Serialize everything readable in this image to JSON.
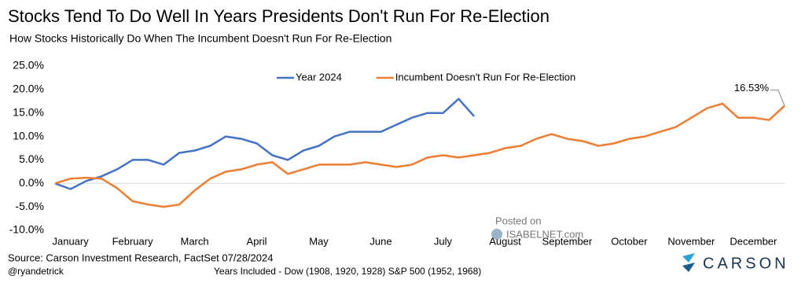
{
  "chart_data": {
    "type": "line",
    "title": "Stocks Tend To Do Well In Years Presidents Don't Run For Re-Election",
    "subtitle": "How Stocks Historically Do When The Incumbent Doesn't Run For Re-Election",
    "source": "Source: Carson Investment Research, FactSet 07/28/2024",
    "credit": "@ryandetrick",
    "note": "Years Included  - Dow (1908, 1920, 1928) S&P 500 (1952, 1968)",
    "watermark": [
      "Posted on",
      "ISABELNET.com"
    ],
    "logo": "CARSON",
    "categories": [
      "January",
      null,
      null,
      null,
      "February",
      null,
      null,
      null,
      "March",
      null,
      null,
      null,
      "April",
      null,
      null,
      null,
      "May",
      null,
      null,
      null,
      "June",
      null,
      null,
      null,
      "July",
      null,
      null,
      null,
      "August",
      null,
      null,
      null,
      "September",
      null,
      null,
      null,
      "October",
      null,
      null,
      null,
      "November",
      null,
      null,
      null,
      "December",
      null,
      null,
      null
    ],
    "series": [
      {
        "name": "Year 2024",
        "color": "#4472c4",
        "values": [
          0,
          -1.2,
          0.5,
          1.5,
          3,
          5,
          5,
          4,
          6.5,
          7,
          8,
          10,
          9.5,
          8.5,
          6,
          5,
          7,
          8,
          10,
          11,
          11,
          11,
          12.5,
          14,
          15,
          15,
          18,
          14.3,
          null,
          null,
          null,
          null,
          null,
          null,
          null,
          null,
          null,
          null,
          null,
          null,
          null,
          null,
          null,
          null,
          null,
          null,
          null,
          null
        ]
      },
      {
        "name": "Incumbent Doesn't Run For Re-Election",
        "color": "#ed7d31",
        "values": [
          0,
          1,
          1.2,
          1,
          -1,
          -3.8,
          -4.5,
          -5,
          -4.5,
          -1.5,
          1,
          2.5,
          3,
          4,
          4.5,
          2,
          3,
          4,
          4,
          4,
          4.5,
          4,
          3.5,
          4,
          5.5,
          6,
          5.5,
          6,
          6.5,
          7.5,
          8,
          9.5,
          10.5,
          9.5,
          9,
          8,
          8.5,
          9.5,
          10,
          11,
          12,
          14,
          16,
          17,
          14,
          14,
          13.5,
          16.53
        ],
        "value_labels": [
          null,
          null,
          null,
          null,
          null,
          null,
          null,
          null,
          null,
          null,
          null,
          null,
          null,
          null,
          null,
          null,
          null,
          null,
          null,
          null,
          null,
          null,
          null,
          null,
          null,
          null,
          null,
          null,
          null,
          null,
          null,
          null,
          null,
          null,
          null,
          null,
          null,
          null,
          null,
          null,
          null,
          null,
          null,
          null,
          null,
          null,
          null,
          "16.53%"
        ]
      }
    ],
    "ylim": [
      -10,
      25
    ],
    "yticks": [
      {
        "value": -10,
        "label": "-10.0%"
      },
      {
        "value": -5,
        "label": "-5.0%"
      },
      {
        "value": 0,
        "label": "0.0%"
      },
      {
        "value": 5,
        "label": "5.0%"
      },
      {
        "value": 10,
        "label": "10.0%"
      },
      {
        "value": 15,
        "label": "15.0%"
      },
      {
        "value": 20,
        "label": "20.0%"
      },
      {
        "value": 25,
        "label": "25.0%"
      }
    ],
    "legend": "top"
  }
}
